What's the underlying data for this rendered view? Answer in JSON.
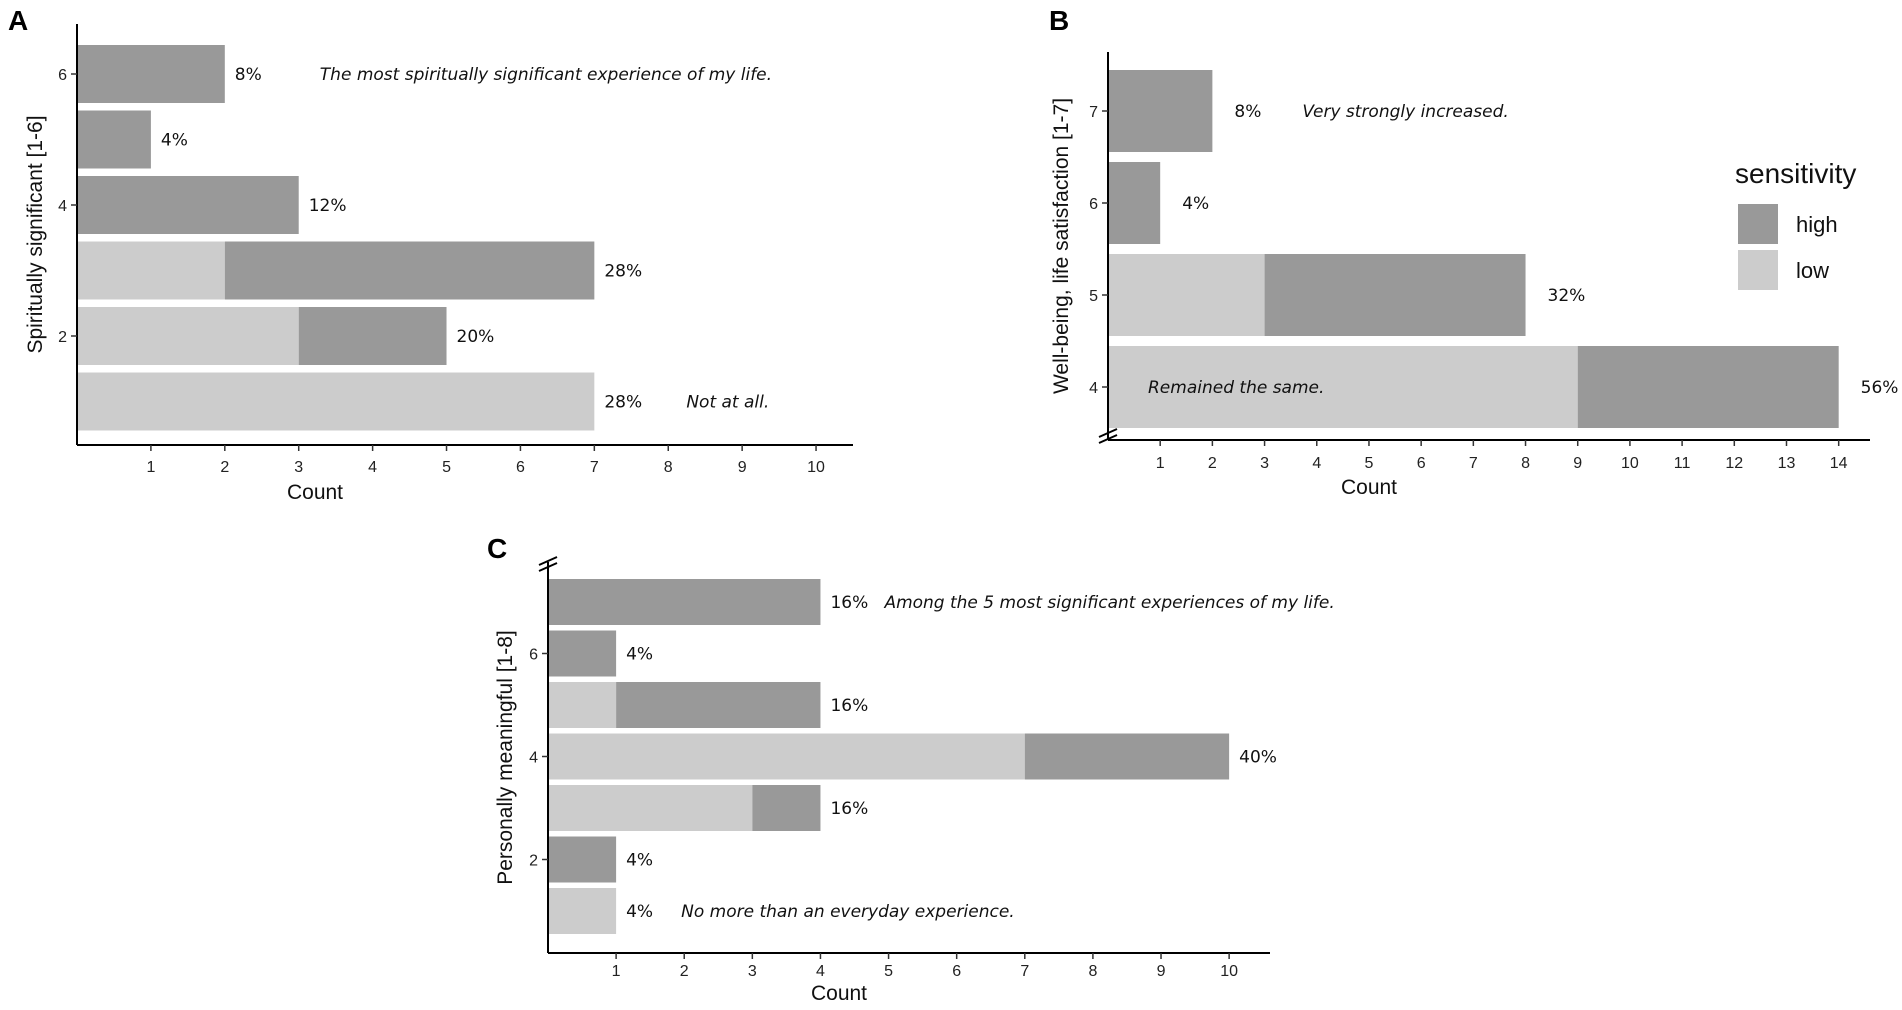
{
  "colors": {
    "high": "#999999",
    "low": "#cccccc",
    "axis": "#000000"
  },
  "legend": {
    "title": "sensitivity",
    "items": [
      {
        "key": "high",
        "label": "high"
      },
      {
        "key": "low",
        "label": "low"
      }
    ]
  },
  "chart_data": [
    {
      "panel": "A",
      "type": "bar",
      "orientation": "horizontal",
      "stacked": true,
      "xlabel": "Count",
      "ylabel": "Spiritually significant [1-6]",
      "xlim": [
        0,
        10.5
      ],
      "xticks": [
        1,
        2,
        3,
        4,
        5,
        6,
        7,
        8,
        9,
        10
      ],
      "categories": [
        1,
        2,
        3,
        4,
        5,
        6
      ],
      "yticklabels": [
        {
          "value": 2,
          "label": "2"
        },
        {
          "value": 4,
          "label": "4"
        },
        {
          "value": 6,
          "label": "6"
        }
      ],
      "series": [
        {
          "name": "low",
          "values": [
            7,
            3,
            2,
            0,
            0,
            0
          ]
        },
        {
          "name": "high",
          "values": [
            0,
            2,
            5,
            3,
            1,
            2
          ]
        }
      ],
      "percent_labels": [
        "28%",
        "20%",
        "28%",
        "12%",
        "4%",
        "8%"
      ],
      "annotations": [
        {
          "category": 6,
          "text": "The most spiritually significant experience of my life."
        },
        {
          "category": 1,
          "text": "Not at all."
        }
      ],
      "axis_break": false
    },
    {
      "panel": "B",
      "type": "bar",
      "orientation": "horizontal",
      "stacked": true,
      "xlabel": "Count",
      "ylabel": "Well-being, life satisfaction [1-7]",
      "xlim": [
        0,
        14.6
      ],
      "xticks": [
        1,
        2,
        3,
        4,
        5,
        6,
        7,
        8,
        9,
        10,
        11,
        12,
        13,
        14
      ],
      "categories": [
        4,
        5,
        6,
        7
      ],
      "yticklabels": [
        {
          "value": 4,
          "label": "4"
        },
        {
          "value": 5,
          "label": "5"
        },
        {
          "value": 6,
          "label": "6"
        },
        {
          "value": 7,
          "label": "7"
        }
      ],
      "series": [
        {
          "name": "low",
          "values": [
            9,
            3,
            0,
            0
          ]
        },
        {
          "name": "high",
          "values": [
            5,
            5,
            1,
            2
          ]
        }
      ],
      "percent_labels": [
        "56%",
        "32%",
        "4%",
        "8%"
      ],
      "annotations": [
        {
          "category": 7,
          "text": "Very strongly increased."
        },
        {
          "category": 4,
          "text": "Remained the same."
        }
      ],
      "axis_break": true
    },
    {
      "panel": "C",
      "type": "bar",
      "orientation": "horizontal",
      "stacked": true,
      "xlabel": "Count",
      "ylabel": "Personally meaningful [1-8]",
      "xlim": [
        0,
        10.6
      ],
      "xticks": [
        1,
        2,
        3,
        4,
        5,
        6,
        7,
        8,
        9,
        10
      ],
      "categories": [
        1,
        2,
        3,
        4,
        5,
        6,
        7
      ],
      "yticklabels": [
        {
          "value": 2,
          "label": "2"
        },
        {
          "value": 4,
          "label": "4"
        },
        {
          "value": 6,
          "label": "6"
        }
      ],
      "series": [
        {
          "name": "low",
          "values": [
            1,
            0,
            3,
            7,
            1,
            0,
            0
          ]
        },
        {
          "name": "high",
          "values": [
            0,
            1,
            1,
            3,
            3,
            1,
            4
          ]
        }
      ],
      "percent_labels": [
        "4%",
        "4%",
        "16%",
        "40%",
        "16%",
        "4%",
        "16%"
      ],
      "annotations": [
        {
          "category": 7,
          "text": "Among the 5 most significant experiences of my life."
        },
        {
          "category": 1,
          "text": "No more than an everyday experience."
        }
      ],
      "axis_break": true
    }
  ]
}
